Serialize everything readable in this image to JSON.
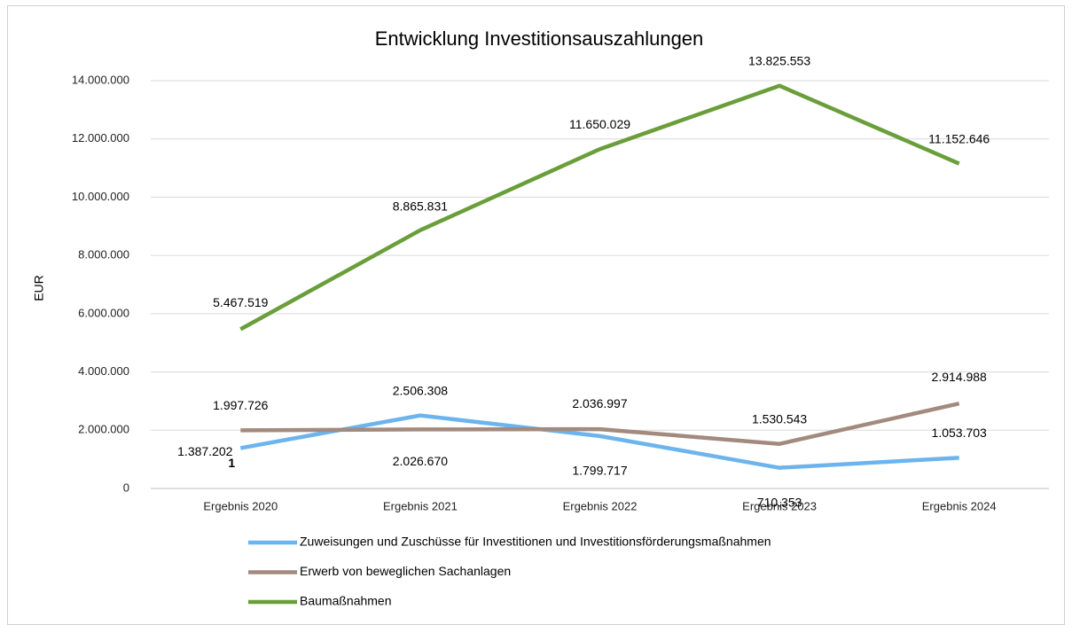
{
  "chart_data": {
    "type": "line",
    "title": "Entwicklung Investitionsauszahlungen",
    "ylabel": "EUR",
    "categories": [
      "Ergebnis 2020",
      "Ergebnis 2021",
      "Ergebnis 2022",
      "Ergebnis 2023",
      "Ergebnis 2024"
    ],
    "series": [
      {
        "name": "Zuweisungen und Zuschüsse für Investitionen und Investitionsförderungsmaßnahmen",
        "color": "#6cb4ee",
        "values": [
          1387202,
          2506308,
          1799717,
          710353,
          1053703
        ],
        "value_labels": [
          "1.387.202",
          "2.506.308",
          "1.799.717",
          "710.353",
          "1.053.703"
        ]
      },
      {
        "name": "Erwerb von beweglichen Sachanlagen",
        "color": "#a38a7e",
        "values": [
          1997726,
          2026670,
          2036997,
          1530543,
          2914988
        ],
        "value_labels": [
          "1.997.726",
          "2.026.670",
          "2.036.997",
          "1.530.543",
          "2.914.988"
        ]
      },
      {
        "name": "Baumaßnahmen",
        "color": "#6a9e3a",
        "values": [
          5467519,
          8865831,
          11650029,
          13825553,
          11152646
        ],
        "value_labels": [
          "5.467.519",
          "8.865.831",
          "11.650.029",
          "13.825.553",
          "11.152.646"
        ]
      }
    ],
    "annotation": "1",
    "ylim": [
      0,
      14000000
    ],
    "yticks": [
      0,
      {
        "value": 2000000,
        "label": "2.000.000"
      },
      {
        "value": 4000000,
        "label": "4.000.000"
      },
      {
        "value": 6000000,
        "label": "6.000.000"
      },
      {
        "value": 8000000,
        "label": "8.000.000"
      },
      {
        "value": 10000000,
        "label": "10.000.000"
      },
      {
        "value": 12000000,
        "label": "12.000.000"
      },
      {
        "value": 14000000,
        "label": "14.000.000"
      }
    ],
    "grid": true,
    "legend": "bottom"
  }
}
